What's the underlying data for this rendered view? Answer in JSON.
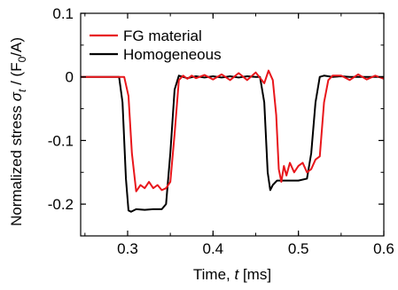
{
  "chart_data": {
    "type": "line",
    "xlabel_prefix": "Time, ",
    "xlabel_symbol": "t",
    "xlabel_unit": " [ms]",
    "ylabel_prefix": "Normalized stress ",
    "ylabel_symbol": "σ",
    "ylabel_subscript": "t",
    "ylabel_suffix": " / (F",
    "ylabel_subscript2": "0",
    "ylabel_unit": "/A)",
    "xlim": [
      0.245,
      0.6
    ],
    "ylim": [
      -0.25,
      0.1
    ],
    "x_ticks": [
      0.3,
      0.4,
      0.5,
      0.6
    ],
    "x_tick_labels": [
      "0.3",
      "0.4",
      "0.5",
      "0.6"
    ],
    "y_ticks": [
      -0.2,
      -0.1,
      0,
      0.1
    ],
    "y_tick_labels": [
      "-0.2",
      "-0.1",
      "0",
      "0.1"
    ],
    "grid": false,
    "legend_position": "top-left",
    "series": [
      {
        "name": "FG material",
        "color": "#e8161b",
        "x": [
          0.245,
          0.28,
          0.296,
          0.301,
          0.305,
          0.31,
          0.315,
          0.32,
          0.325,
          0.33,
          0.335,
          0.34,
          0.345,
          0.35,
          0.355,
          0.36,
          0.365,
          0.37,
          0.375,
          0.38,
          0.39,
          0.4,
          0.41,
          0.42,
          0.43,
          0.44,
          0.45,
          0.46,
          0.465,
          0.47,
          0.474,
          0.477,
          0.48,
          0.483,
          0.486,
          0.49,
          0.495,
          0.5,
          0.505,
          0.51,
          0.515,
          0.52,
          0.525,
          0.53,
          0.535,
          0.54,
          0.55,
          0.56,
          0.57,
          0.58,
          0.59,
          0.6
        ],
        "y": [
          0,
          0,
          0,
          -0.03,
          -0.12,
          -0.18,
          -0.17,
          -0.175,
          -0.165,
          -0.175,
          -0.17,
          -0.178,
          -0.175,
          -0.165,
          -0.09,
          -0.005,
          0.002,
          -0.003,
          0.002,
          -0.002,
          0.003,
          -0.004,
          0.004,
          -0.005,
          0.006,
          -0.005,
          0.007,
          -0.01,
          0.01,
          -0.005,
          -0.06,
          -0.145,
          -0.165,
          -0.14,
          -0.155,
          -0.135,
          -0.15,
          -0.14,
          -0.135,
          -0.15,
          -0.145,
          -0.13,
          -0.125,
          -0.04,
          -0.005,
          0.002,
          0.002,
          -0.005,
          0.004,
          -0.004,
          0.002,
          -0.003
        ]
      },
      {
        "name": "Homogeneous",
        "color": "#000000",
        "x": [
          0.245,
          0.28,
          0.29,
          0.294,
          0.298,
          0.301,
          0.304,
          0.31,
          0.32,
          0.33,
          0.34,
          0.345,
          0.35,
          0.355,
          0.36,
          0.37,
          0.38,
          0.39,
          0.4,
          0.41,
          0.42,
          0.43,
          0.44,
          0.45,
          0.455,
          0.46,
          0.464,
          0.467,
          0.47,
          0.475,
          0.48,
          0.49,
          0.5,
          0.51,
          0.515,
          0.52,
          0.525,
          0.53,
          0.54,
          0.55,
          0.56,
          0.58,
          0.6
        ],
        "y": [
          0,
          0,
          0,
          -0.04,
          -0.16,
          -0.21,
          -0.212,
          -0.208,
          -0.209,
          -0.208,
          -0.208,
          -0.2,
          -0.12,
          -0.02,
          0.002,
          -0.002,
          0.001,
          -0.001,
          0.001,
          -0.001,
          0.001,
          -0.001,
          0.001,
          0,
          0,
          -0.04,
          -0.15,
          -0.178,
          -0.17,
          -0.163,
          -0.163,
          -0.163,
          -0.163,
          -0.16,
          -0.12,
          -0.04,
          0,
          0.002,
          0,
          0.001,
          0,
          0,
          0
        ]
      }
    ]
  }
}
